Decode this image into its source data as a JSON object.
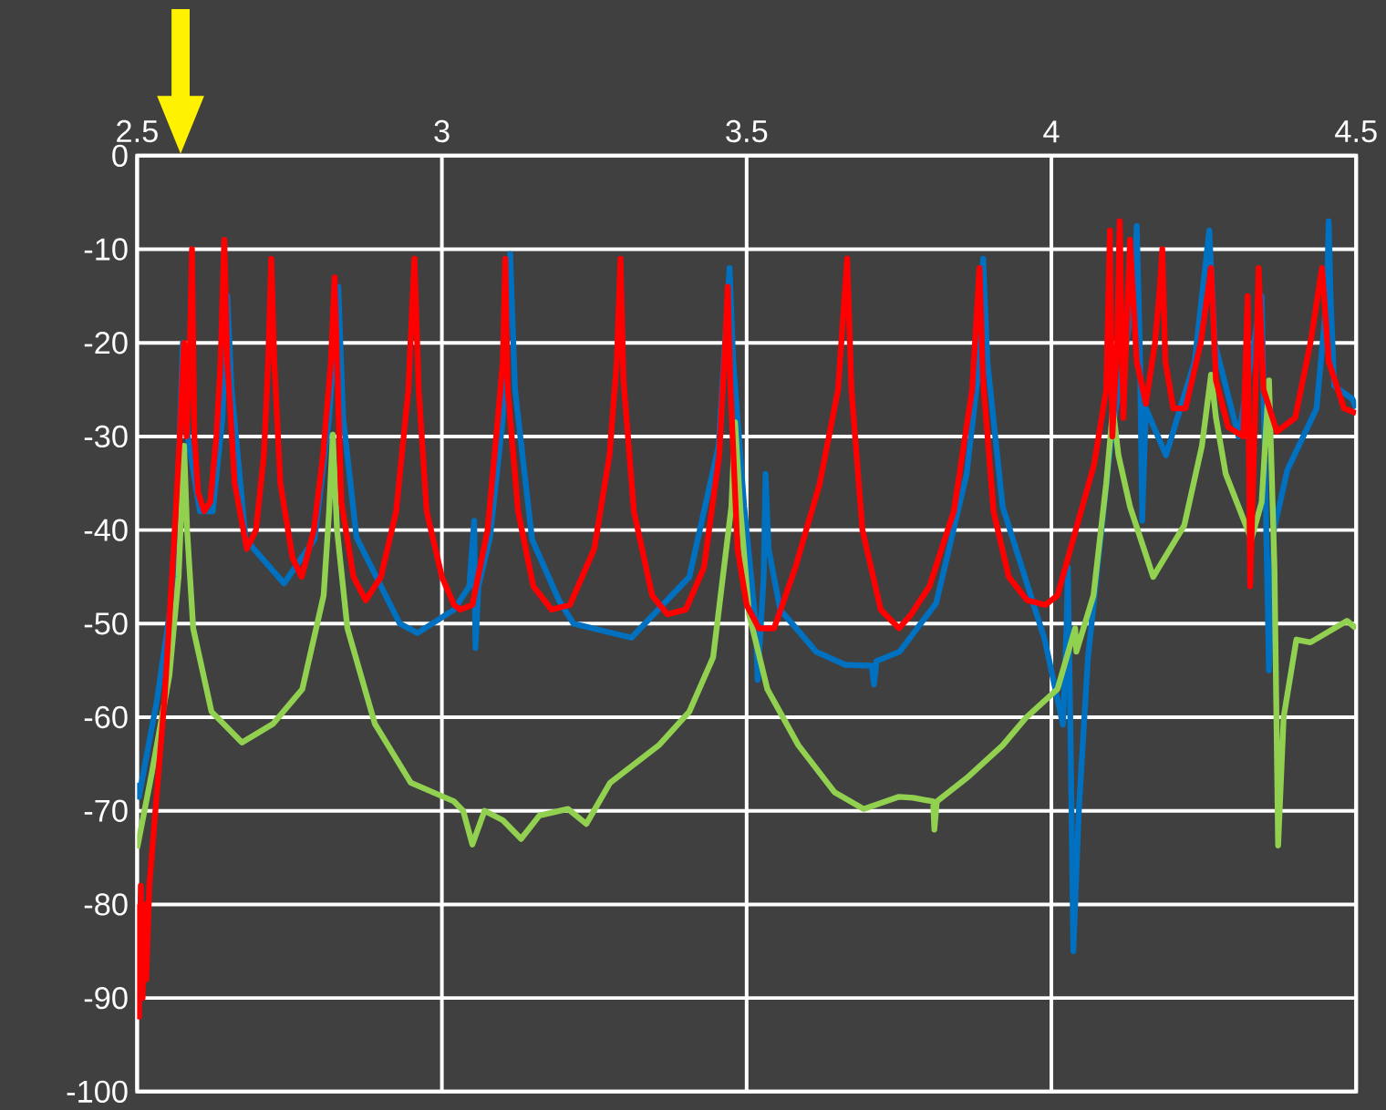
{
  "chart_data": {
    "type": "line",
    "xlim": [
      2.5,
      4.5
    ],
    "xticks": [
      2.5,
      3,
      3.5,
      4,
      4.5
    ],
    "ylim": [
      -100,
      0
    ],
    "yticks": [
      0,
      -10,
      -20,
      -30,
      -40,
      -50,
      -60,
      -70,
      -80,
      -90,
      -100
    ],
    "grid": true,
    "marker": "none",
    "line_style": "solid",
    "series": [
      {
        "color": "#0070c0",
        "x": [
          2.5,
          2.503,
          2.533,
          2.562,
          2.575,
          2.583,
          2.603,
          2.624,
          2.64,
          2.648,
          2.655,
          2.678,
          2.741,
          2.791,
          2.815,
          2.83,
          2.838,
          2.86,
          2.931,
          2.96,
          3.02,
          3.045,
          3.053,
          3.055,
          3.06,
          3.079,
          3.1,
          3.112,
          3.12,
          3.148,
          3.192,
          3.216,
          3.311,
          3.406,
          3.454,
          3.472,
          3.478,
          3.496,
          3.515,
          3.518,
          3.528,
          3.531,
          3.536,
          3.555,
          3.614,
          3.662,
          3.705,
          3.709,
          3.713,
          3.751,
          3.811,
          3.861,
          3.882,
          3.888,
          3.895,
          3.92,
          3.989,
          4.019,
          4.025,
          4.027,
          4.031,
          4.036,
          4.045,
          4.06,
          4.099,
          4.135,
          4.14,
          4.145,
          4.149,
          4.155,
          4.188,
          4.235,
          4.259,
          4.268,
          4.307,
          4.345,
          4.357,
          4.365,
          4.387,
          4.435,
          4.452,
          4.455,
          4.458,
          4.464,
          4.494,
          4.5
        ],
        "values": [
          -67,
          -68.5,
          -58,
          -45,
          -20,
          -30,
          -38,
          -38,
          -28,
          -15,
          -25,
          -41,
          -45.7,
          -41,
          -28,
          -14,
          -28,
          -40.8,
          -50,
          -51,
          -48.5,
          -46,
          -39,
          -52.6,
          -46,
          -40.8,
          -28,
          -10.5,
          -25,
          -41,
          -47.5,
          -50,
          -51.5,
          -45,
          -31,
          -12,
          -22,
          -37.5,
          -50,
          -56,
          -45,
          -34,
          -42,
          -48.5,
          -53,
          -54.4,
          -54.5,
          -56.5,
          -54,
          -53,
          -47.8,
          -34,
          -22,
          -11,
          -22,
          -37.5,
          -51.7,
          -60.8,
          -50,
          -44,
          -60,
          -85,
          -70,
          -53.6,
          -29.8,
          -15,
          -7.5,
          -20,
          -39,
          -27,
          -32,
          -22,
          -8,
          -20,
          -30,
          -15,
          -55,
          -40,
          -33.6,
          -27,
          -15,
          -7,
          -15,
          -24.6,
          -26,
          -27
        ]
      },
      {
        "color": "#92d050",
        "x": [
          2.5,
          2.524,
          2.553,
          2.568,
          2.577,
          2.582,
          2.592,
          2.622,
          2.672,
          2.723,
          2.771,
          2.806,
          2.815,
          2.821,
          2.828,
          2.845,
          2.89,
          2.949,
          3.02,
          3.035,
          3.05,
          3.07,
          3.1,
          3.13,
          3.16,
          3.207,
          3.237,
          3.276,
          3.356,
          3.406,
          3.445,
          3.475,
          3.481,
          3.49,
          3.504,
          3.534,
          3.585,
          3.644,
          3.692,
          3.75,
          3.773,
          3.806,
          3.808,
          3.812,
          3.861,
          3.92,
          3.959,
          4.01,
          4.039,
          4.041,
          4.069,
          4.09,
          4.101,
          4.11,
          4.129,
          4.167,
          4.218,
          4.247,
          4.262,
          4.27,
          4.286,
          4.328,
          4.345,
          4.357,
          4.366,
          4.372,
          4.381,
          4.402,
          4.425,
          4.485,
          4.5
        ],
        "values": [
          -74,
          -66,
          -55.5,
          -45,
          -31,
          -40,
          -50.5,
          -59.4,
          -62.7,
          -60.7,
          -57,
          -47,
          -38,
          -29.8,
          -40,
          -50.5,
          -60.7,
          -67,
          -69,
          -70,
          -73.6,
          -70,
          -71,
          -73,
          -70.5,
          -69.8,
          -71.4,
          -67,
          -63,
          -59.4,
          -53.6,
          -37.5,
          -28.5,
          -38,
          -49,
          -57,
          -63,
          -68,
          -69.8,
          -68.5,
          -68.6,
          -69,
          -72,
          -69,
          -66.5,
          -63,
          -60,
          -57,
          -50.5,
          -53,
          -47,
          -35,
          -27,
          -32,
          -37.5,
          -45,
          -39.5,
          -31,
          -23.4,
          -28,
          -34,
          -41,
          -37,
          -24,
          -44,
          -73.7,
          -60,
          -51.7,
          -52,
          -49.7,
          -50.5
        ]
      },
      {
        "color": "#ff0000",
        "x": [
          2.5,
          2.503,
          2.506,
          2.509,
          2.512,
          2.515,
          2.52,
          2.53,
          2.545,
          2.56,
          2.57,
          2.577,
          2.581,
          2.586,
          2.59,
          2.594,
          2.6,
          2.61,
          2.62,
          2.63,
          2.637,
          2.643,
          2.648,
          2.66,
          2.68,
          2.695,
          2.708,
          2.715,
          2.72,
          2.725,
          2.735,
          2.755,
          2.77,
          2.79,
          2.805,
          2.818,
          2.824,
          2.828,
          2.835,
          2.855,
          2.875,
          2.9,
          2.925,
          2.945,
          2.955,
          2.962,
          2.975,
          3.0,
          3.02,
          3.03,
          3.05,
          3.075,
          3.092,
          3.1,
          3.104,
          3.108,
          3.125,
          3.15,
          3.18,
          3.21,
          3.25,
          3.275,
          3.287,
          3.293,
          3.298,
          3.315,
          3.345,
          3.37,
          3.4,
          3.43,
          3.455,
          3.465,
          3.469,
          3.473,
          3.485,
          3.5,
          3.52,
          3.545,
          3.58,
          3.62,
          3.65,
          3.665,
          3.672,
          3.69,
          3.72,
          3.75,
          3.77,
          3.8,
          3.84,
          3.87,
          3.882,
          3.888,
          3.905,
          3.93,
          3.96,
          3.99,
          4.01,
          4.04,
          4.07,
          4.09,
          4.096,
          4.1,
          4.108,
          4.112,
          4.118,
          4.129,
          4.14,
          4.155,
          4.17,
          4.178,
          4.182,
          4.187,
          4.2,
          4.22,
          4.245,
          4.262,
          4.27,
          4.29,
          4.315,
          4.322,
          4.326,
          4.331,
          4.34,
          4.348,
          4.37,
          4.4,
          4.425,
          4.444,
          4.455,
          4.48,
          4.5
        ],
        "values": [
          -80,
          -92,
          -78,
          -90,
          -80,
          -88,
          -78,
          -70,
          -58,
          -42,
          -30,
          -20,
          -30,
          -22,
          -10,
          -30,
          -36,
          -38,
          -37,
          -30,
          -22,
          -9,
          -22,
          -35,
          -42,
          -40,
          -32,
          -22,
          -11,
          -22,
          -35,
          -43,
          -45,
          -40,
          -32,
          -22,
          -13,
          -22,
          -37,
          -45,
          -47.5,
          -45,
          -38,
          -25,
          -11,
          -25,
          -38,
          -45,
          -48,
          -48.5,
          -48,
          -40,
          -28,
          -22,
          -11,
          -25,
          -38,
          -46,
          -48.5,
          -48,
          -42,
          -32,
          -22,
          -11,
          -24,
          -38,
          -47,
          -49,
          -48.5,
          -44,
          -32,
          -20,
          -14,
          -24,
          -42,
          -48,
          -50.5,
          -50.5,
          -44,
          -35,
          -25,
          -11,
          -25,
          -40,
          -48.5,
          -50.5,
          -49,
          -46,
          -38,
          -25,
          -12,
          -24,
          -38,
          -45,
          -47.5,
          -48,
          -47,
          -40,
          -33,
          -25,
          -8,
          -30,
          -20,
          -7,
          -28,
          -9,
          -22,
          -26.5,
          -20,
          -14,
          -10,
          -22,
          -27,
          -27,
          -20,
          -12,
          -24,
          -29,
          -30,
          -15,
          -46,
          -35,
          -12,
          -25,
          -29.5,
          -28,
          -20,
          -12,
          -22,
          -27,
          -27.5
        ]
      }
    ]
  }
}
